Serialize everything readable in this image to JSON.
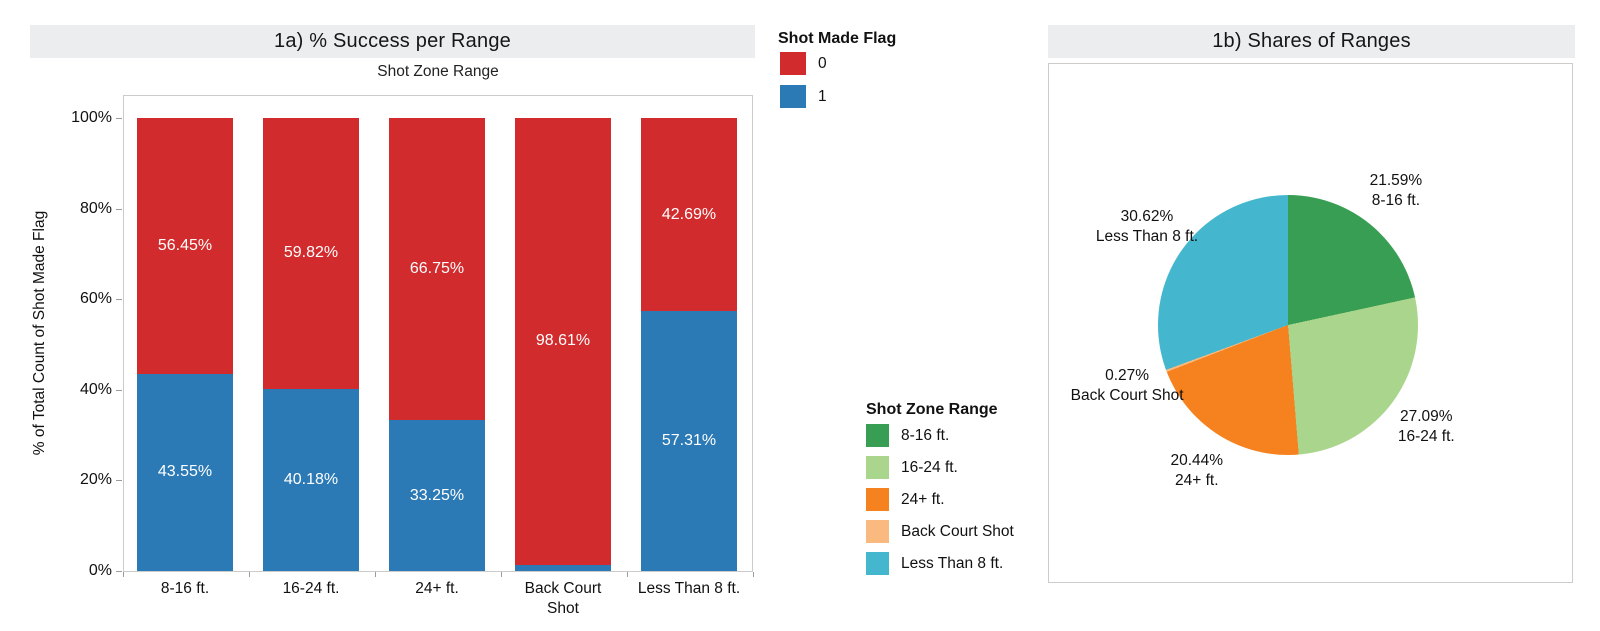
{
  "colors": {
    "missed_red": "#d22b2d",
    "made_blue": "#2b79b5",
    "green_8_16": "#389e54",
    "light_green_16_24": "#a9d68c",
    "orange_24plus": "#f5821e",
    "light_orange_backcourt": "#fab97e",
    "cyan_less8": "#44b6ce",
    "banner_bg": "#ebedef"
  },
  "chart_data": [
    {
      "type": "bar",
      "subtype": "stacked-100pct",
      "title": "1a) % Success per Range",
      "column_header": "Shot Zone Range",
      "ylabel": "% of Total Count of Shot Made Flag",
      "ylim": [
        0,
        100
      ],
      "yticks": [
        "0%",
        "20%",
        "40%",
        "60%",
        "80%",
        "100%"
      ],
      "categories": [
        "8-16 ft.",
        "16-24 ft.",
        "24+ ft.",
        "Back Court Shot",
        "Less Than 8 ft."
      ],
      "series": [
        {
          "name": "0",
          "color": "#d22b2d",
          "values": [
            56.45,
            59.82,
            66.75,
            98.61,
            42.69
          ],
          "labels": [
            "56.45%",
            "59.82%",
            "66.75%",
            "98.61%",
            "42.69%"
          ]
        },
        {
          "name": "1",
          "color": "#2b79b5",
          "values": [
            43.55,
            40.18,
            33.25,
            1.39,
            57.31
          ],
          "labels": [
            "43.55%",
            "40.18%",
            "33.25%",
            "",
            "57.31%"
          ]
        }
      ],
      "legend": {
        "title": "Shot Made Flag",
        "items": [
          {
            "label": "0",
            "color": "#d22b2d"
          },
          {
            "label": "1",
            "color": "#2b79b5"
          }
        ]
      }
    },
    {
      "type": "pie",
      "title": "1b) Shares of Ranges",
      "slices": [
        {
          "label": "8-16 ft.",
          "pct": 21.59,
          "pct_label": "21.59%",
          "color": "#389e54"
        },
        {
          "label": "16-24 ft.",
          "pct": 27.09,
          "pct_label": "27.09%",
          "color": "#a9d68c"
        },
        {
          "label": "24+ ft.",
          "pct": 20.44,
          "pct_label": "20.44%",
          "color": "#f5821e"
        },
        {
          "label": "Back Court Shot",
          "pct": 0.27,
          "pct_label": "0.27%",
          "color": "#fab97e"
        },
        {
          "label": "Less Than 8 ft.",
          "pct": 30.62,
          "pct_label": "30.62%",
          "color": "#44b6ce"
        }
      ],
      "legend": {
        "title": "Shot Zone Range"
      }
    }
  ]
}
